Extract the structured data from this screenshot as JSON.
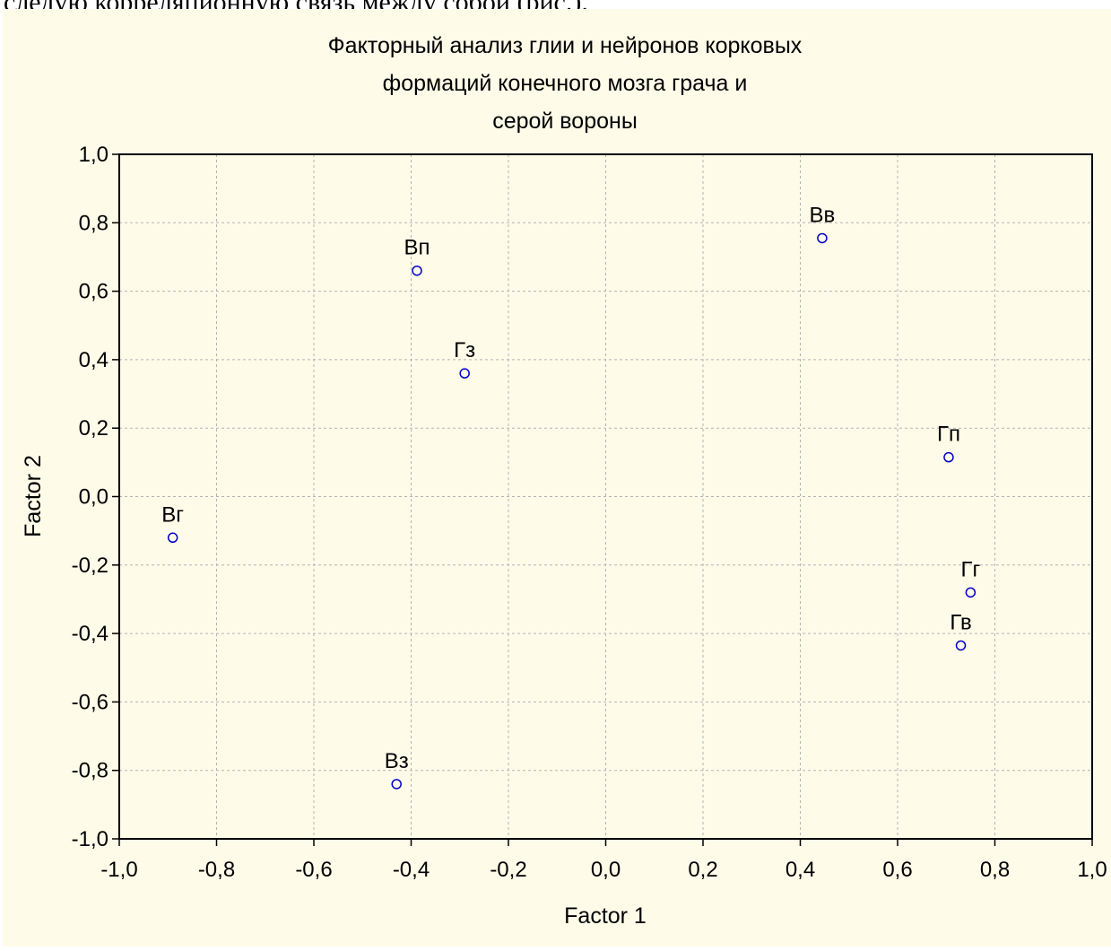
{
  "header_text": "следую корреляционную связь между собой (рис.).",
  "colors": {
    "panel_background": "#fefbe9",
    "grid": "#b4b4b4",
    "marker": "#0000c8",
    "text": "#000000"
  },
  "chart_data": {
    "type": "scatter",
    "title_lines": [
      "Факторный анализ глии и нейронов корковых",
      "формаций конечного мозга грача и",
      "серой вороны"
    ],
    "xlabel": "Factor 1",
    "ylabel": "Factor 2",
    "xlim": [
      -1.0,
      1.0
    ],
    "ylim": [
      -1.0,
      1.0
    ],
    "xticks": [
      -1.0,
      -0.8,
      -0.6,
      -0.4,
      -0.2,
      0.0,
      0.2,
      0.4,
      0.6,
      0.8,
      1.0
    ],
    "yticks": [
      -1.0,
      -0.8,
      -0.6,
      -0.4,
      -0.2,
      0.0,
      0.2,
      0.4,
      0.6,
      0.8,
      1.0
    ],
    "xtick_labels": [
      "-1,0",
      "-0,8",
      "-0,6",
      "-0,4",
      "-0,2",
      "0,0",
      "0,2",
      "0,4",
      "0,6",
      "0,8",
      "1,0"
    ],
    "ytick_labels": [
      "-1,0",
      "-0,8",
      "-0,6",
      "-0,4",
      "-0,2",
      "0,0",
      "0,2",
      "0,4",
      "0,6",
      "0,8",
      "1,0"
    ],
    "grid": true,
    "marker": "open-circle",
    "points": [
      {
        "label": "Вв",
        "x": 0.445,
        "y": 0.755
      },
      {
        "label": "Вп",
        "x": -0.388,
        "y": 0.66
      },
      {
        "label": "Гз",
        "x": -0.29,
        "y": 0.36
      },
      {
        "label": "Гп",
        "x": 0.705,
        "y": 0.115
      },
      {
        "label": "Вг",
        "x": -0.89,
        "y": -0.12
      },
      {
        "label": "Гг",
        "x": 0.75,
        "y": -0.28
      },
      {
        "label": "Гв",
        "x": 0.73,
        "y": -0.435
      },
      {
        "label": "Вз",
        "x": -0.43,
        "y": -0.84
      }
    ]
  }
}
